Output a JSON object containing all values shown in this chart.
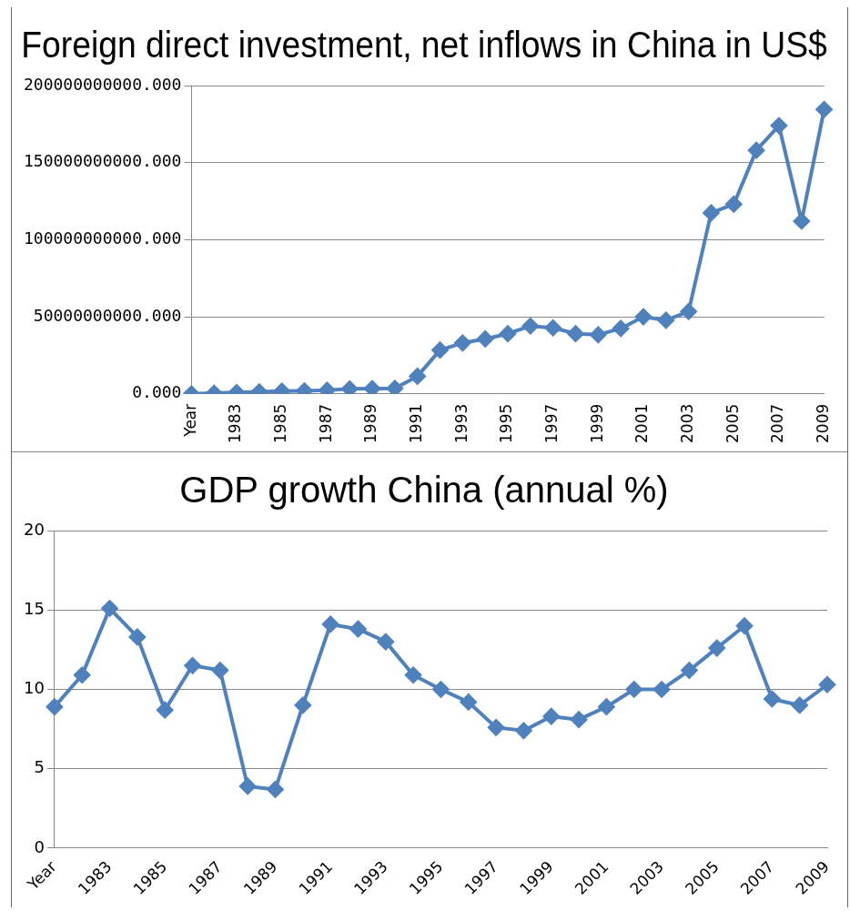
{
  "chart_data": [
    {
      "type": "line",
      "title": "Foreign direct investment, net inflows in China in US$",
      "categories": [
        "Year",
        null,
        "1983",
        null,
        "1985",
        null,
        "1987",
        null,
        "1989",
        null,
        "1991",
        null,
        "1993",
        null,
        "1995",
        null,
        "1997",
        null,
        "1999",
        null,
        "2001",
        null,
        "2003",
        null,
        "2005",
        null,
        "2007",
        null,
        "2009"
      ],
      "series": [
        {
          "color": "#4f81bd",
          "values": [
            0,
            400000000,
            900000000,
            1300000000,
            1700000000,
            1900000000,
            2300000000,
            3200000000,
            3400000000,
            3500000000,
            11400000000,
            28400000000,
            33000000000,
            35600000000,
            39000000000,
            44000000000,
            42800000000,
            39000000000,
            38300000000,
            42400000000,
            50000000000,
            47700000000,
            53400000000,
            117400000000,
            123000000000,
            158000000000,
            174000000000,
            112000000000,
            184500000000
          ]
        }
      ],
      "ylim": [
        0,
        200000000000
      ],
      "yticks": [
        {
          "value": 0,
          "label": "0.000"
        },
        {
          "value": 50000000000,
          "label": "50000000000.000"
        },
        {
          "value": 100000000000,
          "label": "100000000000.000"
        },
        {
          "value": 150000000000,
          "label": "150000000000.000"
        },
        {
          "value": 200000000000,
          "label": "200000000000.000"
        }
      ],
      "grid": "y",
      "legend": false,
      "marker": "diamond",
      "line_style": "solid"
    },
    {
      "type": "line",
      "title": "GDP growth China (annual %)",
      "categories": [
        "Year",
        null,
        "1983",
        null,
        "1985",
        null,
        "1987",
        null,
        "1989",
        null,
        "1991",
        null,
        "1993",
        null,
        "1995",
        null,
        "1997",
        null,
        "1999",
        null,
        "2001",
        null,
        "2003",
        null,
        "2005",
        null,
        "2007",
        null,
        "2009"
      ],
      "series": [
        {
          "color": "#4f81bd",
          "values": [
            8.9,
            10.9,
            15.1,
            13.3,
            8.7,
            11.5,
            11.2,
            3.9,
            3.7,
            9.0,
            14.1,
            13.8,
            13.0,
            10.9,
            10.0,
            9.2,
            7.6,
            7.4,
            8.3,
            8.1,
            8.9,
            10.0,
            10.0,
            11.2,
            12.6,
            14.0,
            9.4,
            9.0,
            10.3
          ]
        }
      ],
      "ylim": [
        0,
        20
      ],
      "yticks": [
        0,
        5,
        10,
        15,
        20
      ],
      "grid": "y",
      "legend": false,
      "marker": "diamond",
      "line_style": "solid"
    }
  ]
}
